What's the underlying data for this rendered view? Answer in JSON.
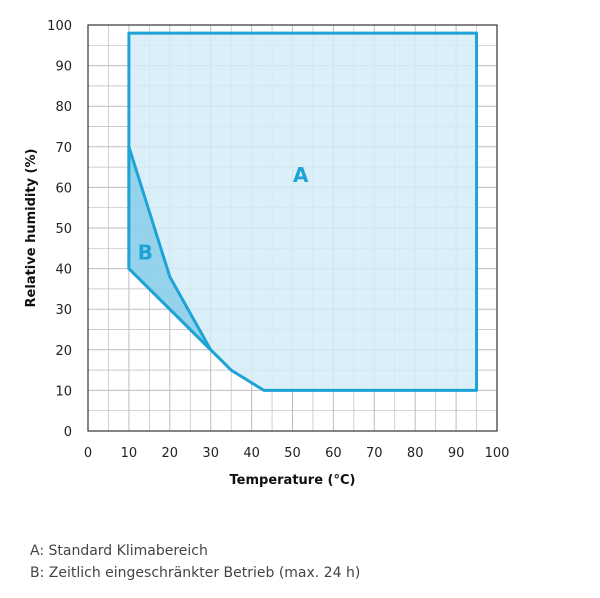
{
  "chart_data": {
    "type": "area",
    "xlabel": "Temperature (°C)",
    "ylabel": "Relative humidity (%)",
    "xlim": [
      0,
      100
    ],
    "ylim": [
      0,
      100
    ],
    "x_ticks": [
      0,
      10,
      20,
      30,
      40,
      50,
      60,
      70,
      80,
      90,
      100
    ],
    "y_ticks": [
      0,
      10,
      20,
      30,
      40,
      50,
      60,
      70,
      80,
      90,
      100
    ],
    "grid": true,
    "colors": {
      "outline": "#1ea3d6",
      "fill_a": "#d3ecf6",
      "fill_b": "#8ccfe9",
      "grid": "#bdbdbd"
    },
    "regions": [
      {
        "name": "A",
        "points": [
          [
            10,
            98
          ],
          [
            95,
            98
          ],
          [
            95,
            10
          ],
          [
            43,
            10
          ],
          [
            35,
            15
          ],
          [
            30,
            20
          ],
          [
            10,
            40
          ]
        ]
      },
      {
        "name": "B",
        "points": [
          [
            10,
            70
          ],
          [
            20,
            38
          ],
          [
            30,
            20
          ],
          [
            10,
            40
          ]
        ]
      }
    ]
  },
  "legend": {
    "a": "A: Standard Klimabereich",
    "b": "B: Zeitlich eingeschränkter Betrieb (max. 24 h)"
  }
}
